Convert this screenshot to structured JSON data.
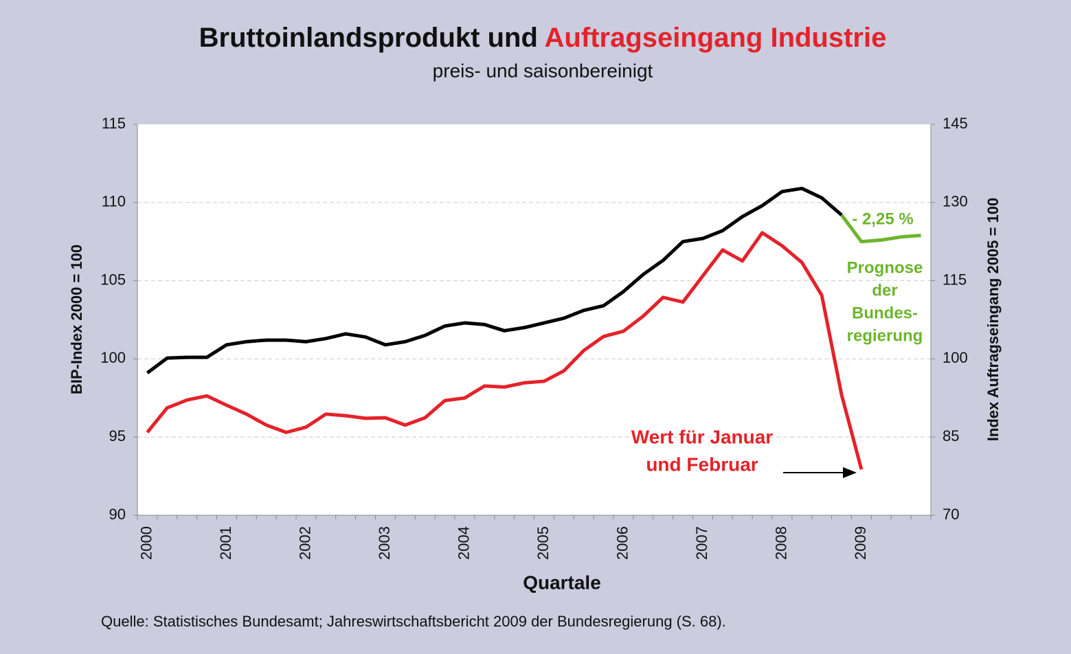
{
  "chart_data": {
    "type": "line",
    "title": "Bruttoinlandsprodukt und",
    "title_highlight": "Auftragseingang Industrie",
    "title_highlight_color": "#e3232a",
    "subtitle": "preis- und saisonbereinigt",
    "x_label": "Quartale",
    "y_label": "BIP-Index 2000 = 100",
    "y2_label": "Index Auftragseingang 2005 = 100",
    "y2_label_color": "#e3232a",
    "source": "Quelle: Statistisches Bundesamt; Jahreswirtschaftsbericht 2009 der Bundesregierung (S. 68).",
    "categories": [
      "2000",
      null,
      null,
      null,
      "2001",
      null,
      null,
      null,
      "2002",
      null,
      null,
      null,
      "2003",
      null,
      null,
      null,
      "2004",
      null,
      null,
      null,
      "2005",
      null,
      null,
      null,
      "2006",
      null,
      null,
      null,
      "2007",
      null,
      null,
      null,
      "2008",
      null,
      null,
      null,
      "2009",
      null,
      null,
      null
    ],
    "series": [
      {
        "color": "#000000",
        "axis": "y",
        "values": [
          99.1,
          100.05,
          100.1,
          100.1,
          100.9,
          101.1,
          101.2,
          101.2,
          101.1,
          101.3,
          101.6,
          101.4,
          100.9,
          101.1,
          101.5,
          102.1,
          102.3,
          102.2,
          101.8,
          102.0,
          102.3,
          102.6,
          103.1,
          103.4,
          104.3,
          105.4,
          106.3,
          107.5,
          107.7,
          108.2,
          109.1,
          109.8,
          110.7,
          110.9,
          110.3,
          109.2,
          null,
          null,
          null,
          null
        ]
      },
      {
        "color": "#e3232a",
        "axis": "y2",
        "values": [
          85.9,
          90.6,
          92.1,
          92.9,
          91.1,
          89.4,
          87.3,
          85.9,
          86.9,
          89.4,
          89.1,
          88.6,
          88.7,
          87.3,
          88.7,
          92.0,
          92.5,
          94.8,
          94.6,
          95.4,
          95.7,
          97.7,
          101.6,
          104.3,
          105.3,
          108.2,
          111.8,
          110.9,
          115.9,
          120.9,
          118.8,
          124.2,
          121.7,
          118.5,
          112.2,
          93.1,
          78.8,
          null,
          null,
          null
        ]
      },
      {
        "color": "#6cb52d",
        "axis": "y",
        "values": [
          null,
          null,
          null,
          null,
          null,
          null,
          null,
          null,
          null,
          null,
          null,
          null,
          null,
          null,
          null,
          null,
          null,
          null,
          null,
          null,
          null,
          null,
          null,
          null,
          null,
          null,
          null,
          null,
          null,
          null,
          null,
          null,
          null,
          null,
          null,
          109.2,
          107.5,
          107.6,
          107.8,
          107.9
        ]
      }
    ],
    "ylim": [
      90,
      115
    ],
    "yticks": [
      90,
      95,
      100,
      105,
      110,
      115
    ],
    "y2lim": [
      70,
      145
    ],
    "y2ticks": [
      70,
      85,
      100,
      115,
      130,
      145
    ],
    "grid": true,
    "annotations": [
      {
        "lines": [
          "- 2,25 %"
        ],
        "color": "#6cb52d"
      },
      {
        "lines": [
          "Prognose",
          "der",
          "Bundes-",
          "regierung"
        ],
        "color": "#6cb52d"
      },
      {
        "lines": [
          "Wert für Januar",
          "und Februar"
        ],
        "color": "#e3232a"
      }
    ]
  }
}
